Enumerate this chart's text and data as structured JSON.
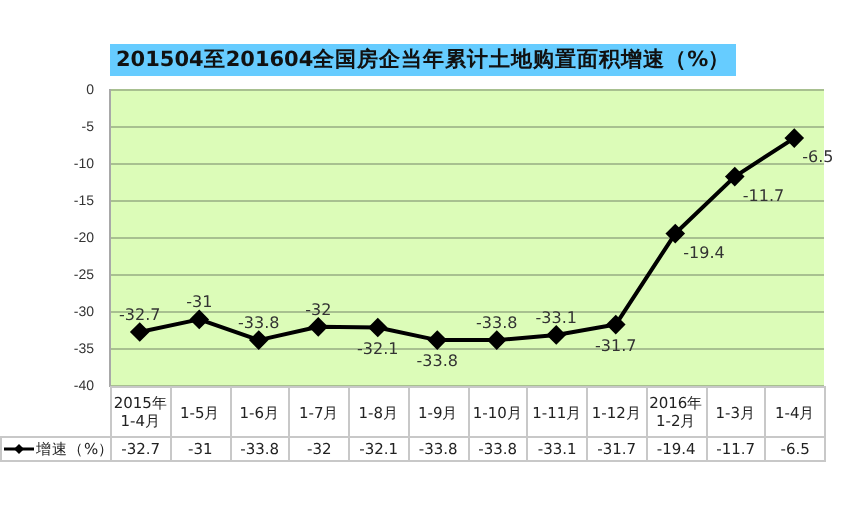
{
  "chart_data": {
    "type": "line",
    "title": "201504至201604全国房企当年累计土地购置面积增速（%）",
    "categories": [
      "2015年 1-4月",
      "1-5月",
      "1-6月",
      "1-7月",
      "1-8月",
      "1-9月",
      "1-10月",
      "1-11月",
      "1-12月",
      "2016年 1-2月",
      "1-3月",
      "1-4月"
    ],
    "series": [
      {
        "name": "增速（%）",
        "color": "#000000",
        "values": [
          -32.7,
          -31,
          -33.8,
          -32,
          -32.1,
          -33.8,
          -33.8,
          -33.1,
          -31.7,
          -19.4,
          -11.7,
          -6.5
        ]
      }
    ],
    "annotations": [
      {
        "text": "-32.7",
        "x": "2015年 1-4月",
        "y": -32.7
      },
      {
        "text": "-31",
        "x": "1-5月",
        "y": -31
      },
      {
        "text": "-33.8",
        "x": "1-6月",
        "y": -33.8
      },
      {
        "text": "-32",
        "x": "1-7月",
        "y": -32
      },
      {
        "text": "-32.1",
        "x": "1-8月",
        "y": -32.1
      },
      {
        "text": "-33.8",
        "x": "1-9月",
        "y": -33.8
      },
      {
        "text": "-33.8",
        "x": "1-10月",
        "y": -33.8
      },
      {
        "text": "-33.1",
        "x": "1-11月",
        "y": -33.1
      },
      {
        "text": "-31.7",
        "x": "1-12月",
        "y": -31.7
      },
      {
        "text": "-19.4",
        "x": "2016年 1-2月",
        "y": -19.4
      },
      {
        "text": "-11.7",
        "x": "1-3月",
        "y": -11.7
      },
      {
        "text": "-6.5",
        "x": "1-4月",
        "y": -6.5
      }
    ],
    "ylim": [
      -40,
      0
    ],
    "yticks": [
      -40,
      -35,
      -30,
      -25,
      -20,
      -15,
      -10,
      -5,
      0
    ],
    "grid": "y",
    "legend": "bottom",
    "marker": "diamond",
    "data_labels": true
  }
}
